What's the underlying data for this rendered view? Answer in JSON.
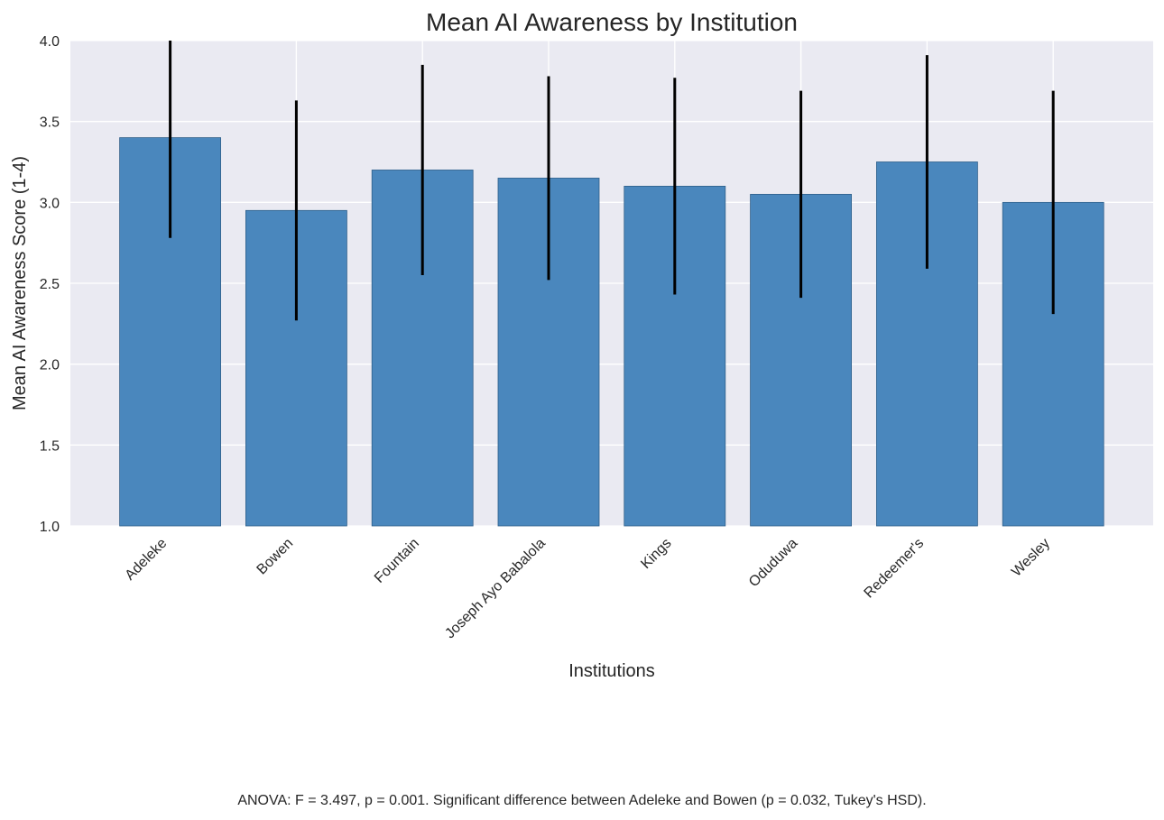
{
  "chart_data": {
    "type": "bar",
    "title": "Mean AI Awareness by Institution",
    "xlabel": "Institutions",
    "ylabel": "Mean AI Awareness Score (1-4)",
    "ylim": [
      1.0,
      4.0
    ],
    "yticks": [
      "1.0",
      "1.5",
      "2.0",
      "2.5",
      "3.0",
      "3.5",
      "4.0"
    ],
    "categories": [
      "Adeleke",
      "Bowen",
      "Fountain",
      "Joseph Ayo Babalola",
      "Kings",
      "Oduduwa",
      "Redeemer's",
      "Wesley"
    ],
    "values": [
      3.4,
      2.95,
      3.2,
      3.15,
      3.1,
      3.05,
      3.25,
      3.0
    ],
    "error": [
      0.62,
      0.68,
      0.65,
      0.63,
      0.67,
      0.64,
      0.66,
      0.69
    ],
    "grid": true,
    "colors": {
      "bar": "#4a87bd",
      "bar_edge": "#2f5f8a",
      "error_bar": "#000000",
      "plot_background": "#eaeaf2",
      "grid": "#ffffff"
    },
    "annotation": "ANOVA: F = 3.497, p = 0.001. Significant difference between Adeleke and Bowen (p = 0.032, Tukey's HSD)."
  }
}
